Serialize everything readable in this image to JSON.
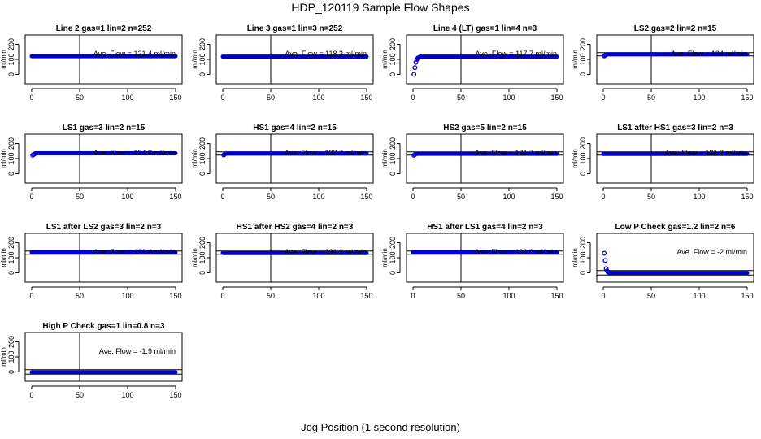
{
  "figure": {
    "title": "HDP_120119  Sample Flow Shapes",
    "xlabel": "Jog Position (1 second resolution)"
  },
  "style": {
    "point_color": "#0000cc",
    "line_color": "#000000"
  },
  "chart_data": [
    {
      "type": "scatter",
      "title": "Line 2 gas=1 lin=2 n=252",
      "annotation": "Ave. Flow =  121.4  ml/min",
      "ylabel": "ml/min",
      "xlim": [
        0,
        150
      ],
      "ylim": [
        -30,
        230
      ],
      "xticks": [
        0,
        50,
        100,
        150
      ],
      "yticks": [
        0,
        100,
        200
      ],
      "vline_x": 50,
      "hlines": [],
      "points": [],
      "flat": {
        "x": [
          0,
          150
        ],
        "y": 121
      }
    },
    {
      "type": "scatter",
      "title": "Line 3 gas=1 lin=3 n=252",
      "annotation": "Ave. Flow =  118.3  ml/min",
      "ylabel": "ml/min",
      "xlim": [
        0,
        150
      ],
      "ylim": [
        -30,
        230
      ],
      "xticks": [
        0,
        50,
        100,
        150
      ],
      "yticks": [
        0,
        100,
        200
      ],
      "vline_x": 50,
      "hlines": [],
      "points": [],
      "flat": {
        "x": [
          0,
          150
        ],
        "y": 118
      }
    },
    {
      "type": "scatter",
      "title": "Line 4 (LT) gas=1 lin=4 n=3",
      "annotation": "Ave. Flow =  117.7  ml/min",
      "ylabel": "ml/min",
      "xlim": [
        0,
        150
      ],
      "ylim": [
        -30,
        230
      ],
      "xticks": [
        0,
        50,
        100,
        150
      ],
      "yticks": [
        0,
        100,
        200
      ],
      "vline_x": 50,
      "hlines": [],
      "points": [
        [
          1,
          0
        ],
        [
          2,
          45
        ],
        [
          3,
          80
        ],
        [
          4,
          100
        ],
        [
          5,
          108
        ],
        [
          6,
          112
        ],
        [
          7,
          115
        ],
        [
          8,
          117
        ]
      ],
      "flat": {
        "x": [
          9,
          150
        ],
        "y": 118
      }
    },
    {
      "type": "scatter",
      "title": "LS2 gas=2 lin=2 n=15",
      "annotation": "Ave. Flow =  134  ml/min",
      "ylabel": "ml/min",
      "xlim": [
        0,
        150
      ],
      "ylim": [
        -30,
        230
      ],
      "xticks": [
        0,
        50,
        100,
        150
      ],
      "yticks": [
        0,
        100,
        200
      ],
      "vline_x": 50,
      "hlines": [
        145,
        123
      ],
      "points": [
        [
          1,
          123
        ],
        [
          2,
          128
        ],
        [
          3,
          131
        ]
      ],
      "flat": {
        "x": [
          4,
          150
        ],
        "y": 134
      }
    },
    {
      "type": "scatter",
      "title": "LS1 gas=3 lin=2 n=15",
      "annotation": "Ave. Flow =  134.8  ml/min",
      "ylabel": "ml/min",
      "xlim": [
        0,
        150
      ],
      "ylim": [
        -30,
        230
      ],
      "xticks": [
        0,
        50,
        100,
        150
      ],
      "yticks": [
        0,
        100,
        200
      ],
      "vline_x": 50,
      "hlines": [],
      "points": [
        [
          1,
          122
        ],
        [
          2,
          128
        ],
        [
          3,
          131
        ]
      ],
      "flat": {
        "x": [
          4,
          150
        ],
        "y": 135
      }
    },
    {
      "type": "scatter",
      "title": "HS1 gas=4 lin=2 n=15",
      "annotation": "Ave. Flow =  133.7  ml/min",
      "ylabel": "ml/min",
      "xlim": [
        0,
        150
      ],
      "ylim": [
        -30,
        230
      ],
      "xticks": [
        0,
        50,
        100,
        150
      ],
      "yticks": [
        0,
        100,
        200
      ],
      "vline_x": 50,
      "hlines": [
        145,
        123
      ],
      "points": [
        [
          1,
          124
        ],
        [
          2,
          129
        ]
      ],
      "flat": {
        "x": [
          3,
          150
        ],
        "y": 134
      }
    },
    {
      "type": "scatter",
      "title": "HS2 gas=5 lin=2 n=15",
      "annotation": "Ave. Flow =  131.7  ml/min",
      "ylabel": "ml/min",
      "xlim": [
        0,
        150
      ],
      "ylim": [
        -30,
        230
      ],
      "xticks": [
        0,
        50,
        100,
        150
      ],
      "yticks": [
        0,
        100,
        200
      ],
      "vline_x": 50,
      "hlines": [
        145,
        123
      ],
      "points": [
        [
          1,
          122
        ],
        [
          2,
          127
        ]
      ],
      "flat": {
        "x": [
          3,
          150
        ],
        "y": 132
      }
    },
    {
      "type": "scatter",
      "title": "LS1 after HS1 gas=3 lin=2 n=3",
      "annotation": "Ave. Flow =  131.2  ml/min",
      "ylabel": "ml/min",
      "xlim": [
        0,
        150
      ],
      "ylim": [
        -30,
        230
      ],
      "xticks": [
        0,
        50,
        100,
        150
      ],
      "yticks": [
        0,
        100,
        200
      ],
      "vline_x": 50,
      "hlines": [
        145,
        123
      ],
      "points": [],
      "flat": {
        "x": [
          0,
          150
        ],
        "y": 131
      }
    },
    {
      "type": "scatter",
      "title": "LS1 after LS2 gas=3 lin=2 n=3",
      "annotation": "Ave. Flow =  136.0  ml/min",
      "ylabel": "ml/min",
      "xlim": [
        0,
        150
      ],
      "ylim": [
        -30,
        230
      ],
      "xticks": [
        0,
        50,
        100,
        150
      ],
      "yticks": [
        0,
        100,
        200
      ],
      "vline_x": 50,
      "hlines": [
        145,
        123
      ],
      "points": [],
      "flat": {
        "x": [
          0,
          150
        ],
        "y": 136
      }
    },
    {
      "type": "scatter",
      "title": "HS1 after HS2 gas=4 lin=2 n=3",
      "annotation": "Ave. Flow =  131.3  ml/min",
      "ylabel": "ml/min",
      "xlim": [
        0,
        150
      ],
      "ylim": [
        -30,
        230
      ],
      "xticks": [
        0,
        50,
        100,
        150
      ],
      "yticks": [
        0,
        100,
        200
      ],
      "vline_x": 50,
      "hlines": [
        145,
        123
      ],
      "points": [],
      "flat": {
        "x": [
          0,
          150
        ],
        "y": 131
      }
    },
    {
      "type": "scatter",
      "title": "HS1 after LS1 gas=4 lin=2 n=3",
      "annotation": "Ave. Flow =  136.0  ml/min",
      "ylabel": "ml/min",
      "xlim": [
        0,
        150
      ],
      "ylim": [
        -30,
        230
      ],
      "xticks": [
        0,
        50,
        100,
        150
      ],
      "yticks": [
        0,
        100,
        200
      ],
      "vline_x": 50,
      "hlines": [
        145,
        123
      ],
      "points": [],
      "flat": {
        "x": [
          0,
          150
        ],
        "y": 136
      }
    },
    {
      "type": "scatter",
      "title": "Low P Check gas=1.2 lin=2 n=6",
      "annotation": "Ave. Flow =  -2  ml/min",
      "ylabel": "ml/min",
      "xlim": [
        0,
        150
      ],
      "ylim": [
        -30,
        230
      ],
      "xticks": [
        0,
        50,
        100,
        150
      ],
      "yticks": [
        0,
        100,
        200
      ],
      "vline_x": null,
      "hlines": [
        15,
        -15
      ],
      "points": [
        [
          1,
          130
        ],
        [
          2,
          82
        ],
        [
          3,
          28
        ],
        [
          4,
          12
        ],
        [
          5,
          4
        ],
        [
          6,
          1
        ]
      ],
      "flat": {
        "x": [
          7,
          150
        ],
        "y": -1
      }
    },
    {
      "type": "scatter",
      "title": "High P Check gas=1 lin=0.8 n=3",
      "annotation": "Ave. Flow =  -1.9  ml/min",
      "ylabel": "ml/min",
      "xlim": [
        0,
        150
      ],
      "ylim": [
        -30,
        230
      ],
      "xticks": [
        0,
        50,
        100,
        150
      ],
      "yticks": [
        0,
        100,
        200
      ],
      "vline_x": 50,
      "hlines": [
        15,
        -15
      ],
      "points": [],
      "flat": {
        "x": [
          0,
          150
        ],
        "y": -2
      }
    }
  ]
}
